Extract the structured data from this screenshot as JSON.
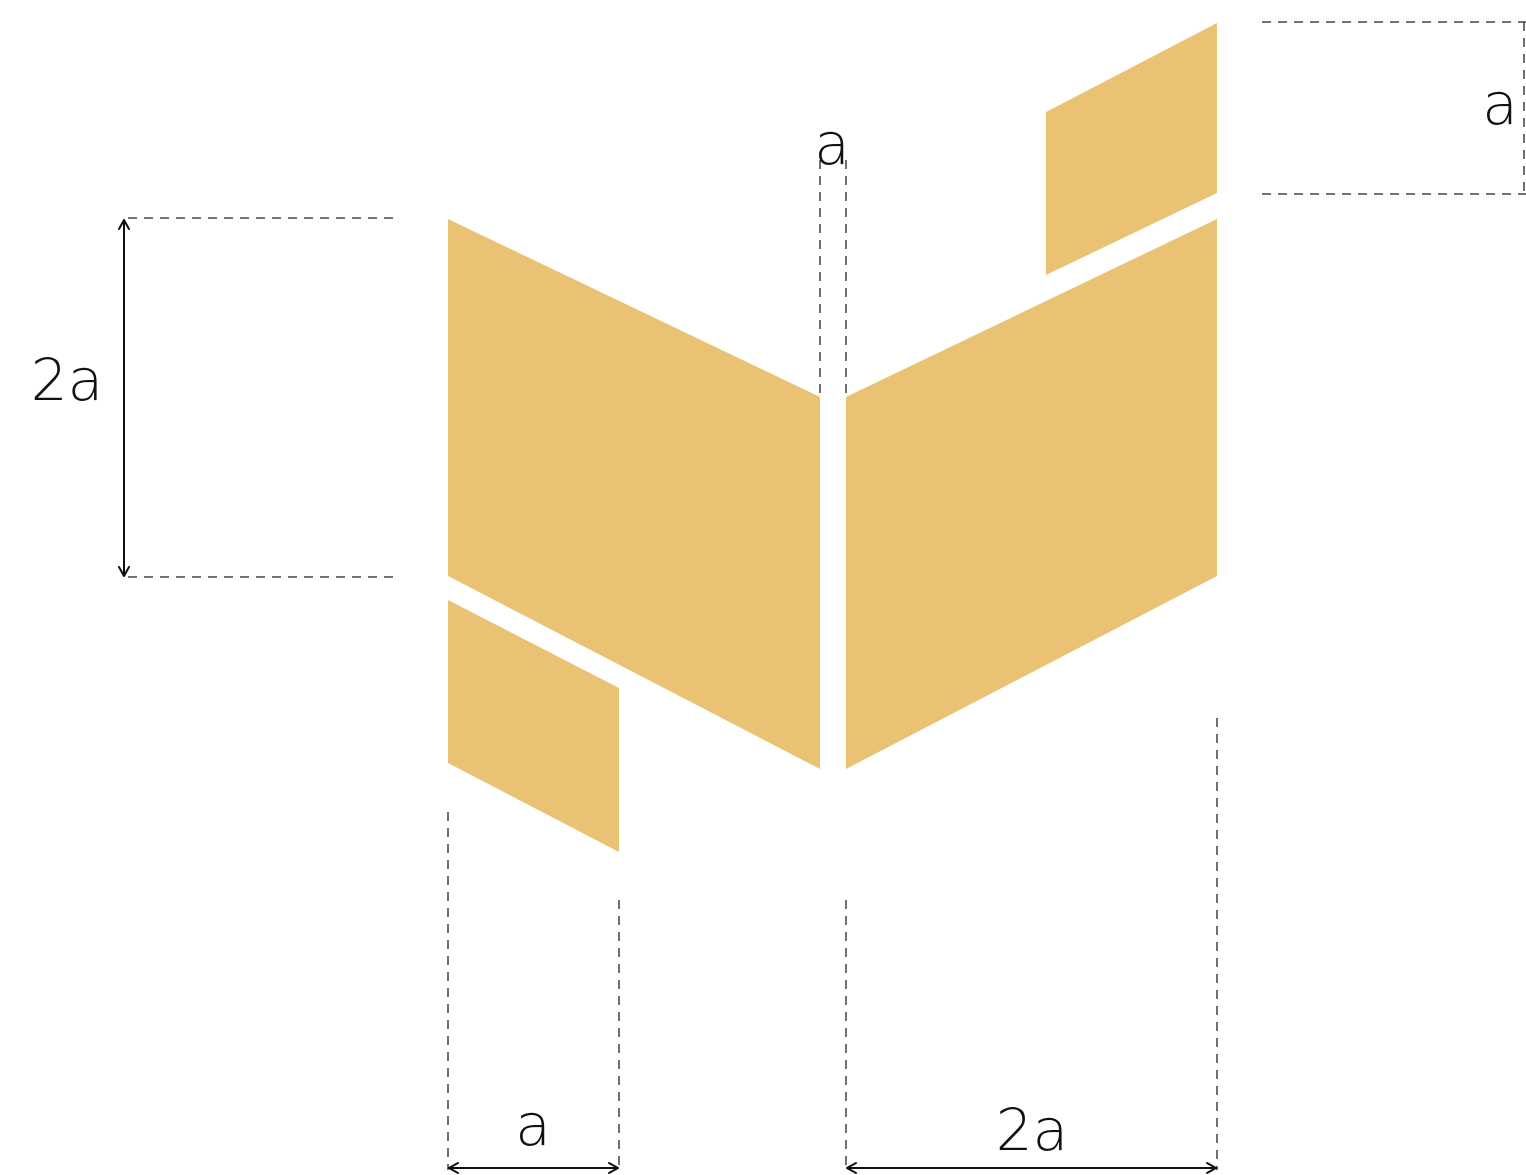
{
  "logo": {
    "fill_color": "#E9C273",
    "pieces": [
      {
        "name": "small-top-right-parallelogram"
      },
      {
        "name": "large-left-parallelogram"
      },
      {
        "name": "large-right-parallelogram"
      },
      {
        "name": "small-bottom-left-parallelogram"
      }
    ]
  },
  "dimensions": {
    "top_right_height_label": "a",
    "center_gap_label": "a",
    "left_height_label": "2a",
    "bottom_left_width_label": "a",
    "bottom_right_width_label": "2a"
  },
  "line_color": "#111111"
}
